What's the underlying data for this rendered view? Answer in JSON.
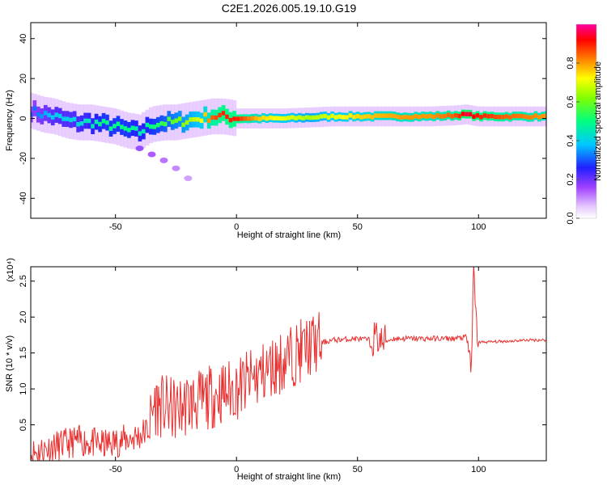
{
  "figure": {
    "title": "C2E1.2026.005.19.10.G19"
  },
  "chart_data": [
    {
      "type": "heatmap",
      "title": "C2E1.2026.005.19.10.G19",
      "xlabel": "Height of straight line (km)",
      "ylabel": "Frequency (Hz)",
      "xlim": [
        -85,
        128
      ],
      "ylim": [
        -50,
        48
      ],
      "xticks": [
        -50,
        0,
        50,
        100
      ],
      "yticks": [
        -40,
        -20,
        0,
        20,
        40
      ],
      "xtick_labels": [
        "-50",
        "0",
        "50",
        "100"
      ],
      "ytick_labels": [
        "-40",
        "-20",
        "0",
        "20",
        "40"
      ],
      "colorbar": {
        "label": "Normalized spectral amplitude",
        "range": [
          0.0,
          1.0
        ],
        "ticks": [
          0.0,
          0.2,
          0.4,
          0.6,
          0.8
        ],
        "tick_labels": [
          "0.0",
          "0.2",
          "0.4",
          "0.6",
          "0.8"
        ],
        "colormap": [
          "#ffffff",
          "#e6c8ff",
          "#a040ff",
          "#2020ff",
          "#00c8ff",
          "#00ff80",
          "#80ff00",
          "#ffff00",
          "#ff8000",
          "#ff0000",
          "#ff00a0"
        ]
      },
      "ridge": {
        "height_km": [
          -85,
          -80,
          -75,
          -70,
          -65,
          -60,
          -55,
          -50,
          -45,
          -40,
          -35,
          -30,
          -25,
          -20,
          -15,
          -10,
          -5,
          0,
          10,
          20,
          30,
          40,
          50,
          60,
          70,
          80,
          90,
          95,
          100,
          110,
          128
        ],
        "frequency_hz": [
          4,
          2,
          1,
          -1,
          -2,
          -2,
          -3,
          -4,
          -6,
          -7,
          -3,
          -2,
          -2,
          -1,
          0,
          1,
          1,
          0,
          0,
          0,
          0.5,
          1,
          1,
          1,
          1,
          1,
          1.5,
          2,
          1,
          1,
          1
        ],
        "amplitude": [
          0.3,
          0.35,
          0.4,
          0.4,
          0.42,
          0.45,
          0.5,
          0.5,
          0.5,
          0.45,
          0.5,
          0.55,
          0.6,
          0.65,
          0.7,
          0.85,
          0.9,
          0.9,
          0.75,
          0.7,
          0.65,
          0.7,
          0.75,
          0.78,
          0.8,
          0.8,
          0.85,
          0.95,
          0.9,
          0.85,
          0.8
        ]
      },
      "descending_branch": {
        "height_km": [
          -40,
          -35,
          -30,
          -25,
          -20
        ],
        "frequency_hz": [
          -15,
          -18,
          -21,
          -25,
          -30
        ]
      }
    },
    {
      "type": "line",
      "xlabel": "Height of straight line (km)",
      "ylabel": "SNR (10 * v/v)",
      "y_scale_note": "(x10⁴)",
      "xlim": [
        -85,
        128
      ],
      "ylim": [
        0,
        2.7
      ],
      "xticks": [
        -50,
        0,
        50,
        100
      ],
      "yticks": [
        0.5,
        1.0,
        1.5,
        2.0,
        2.5
      ],
      "xtick_labels": [
        "-50",
        "0",
        "50",
        "100"
      ],
      "ytick_labels": [
        "0.5",
        "1.0",
        "1.5",
        "2.0",
        "2.5"
      ],
      "series": [
        {
          "name": "SNR",
          "color": "#e83030",
          "x": [
            -85,
            -75,
            -65,
            -55,
            -45,
            -40,
            -36,
            -34,
            -30,
            -25,
            -20,
            -15,
            -10,
            -5,
            0,
            5,
            10,
            15,
            20,
            25,
            30,
            40,
            50,
            55,
            58,
            60,
            65,
            70,
            80,
            90,
            95,
            97,
            98,
            99,
            100,
            110,
            120,
            128
          ],
          "y": [
            0.1,
            0.2,
            0.28,
            0.22,
            0.3,
            0.35,
            0.45,
            0.8,
            0.75,
            0.7,
            0.8,
            0.82,
            0.9,
            0.95,
            1.0,
            1.1,
            1.2,
            1.3,
            1.4,
            1.5,
            1.6,
            1.68,
            1.7,
            1.68,
            1.72,
            1.65,
            1.7,
            1.7,
            1.7,
            1.7,
            1.72,
            1.3,
            2.65,
            1.9,
            1.65,
            1.66,
            1.68,
            1.68
          ]
        }
      ]
    }
  ]
}
